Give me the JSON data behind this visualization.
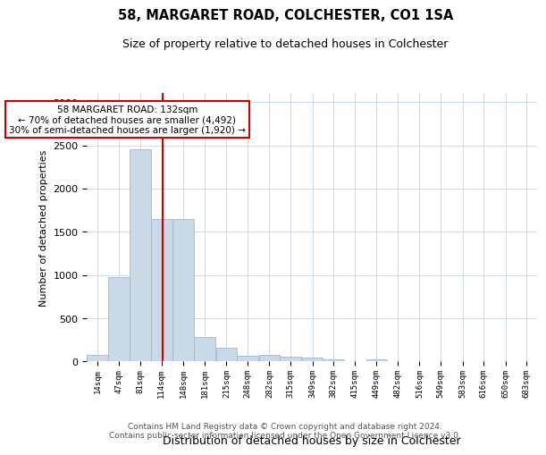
{
  "title1": "58, MARGARET ROAD, COLCHESTER, CO1 1SA",
  "title2": "Size of property relative to detached houses in Colchester",
  "xlabel": "Distribution of detached houses by size in Colchester",
  "ylabel": "Number of detached properties",
  "footer1": "Contains HM Land Registry data © Crown copyright and database right 2024.",
  "footer2": "Contains public sector information licensed under the Open Government Licence v3.0.",
  "annotation_line1": "58 MARGARET ROAD: 132sqm",
  "annotation_line2": "← 70% of detached houses are smaller (4,492)",
  "annotation_line3": "30% of semi-detached houses are larger (1,920) →",
  "red_line_x": 132,
  "categories": [
    "14sqm",
    "47sqm",
    "81sqm",
    "114sqm",
    "148sqm",
    "181sqm",
    "215sqm",
    "248sqm",
    "282sqm",
    "315sqm",
    "349sqm",
    "382sqm",
    "415sqm",
    "449sqm",
    "482sqm",
    "516sqm",
    "549sqm",
    "583sqm",
    "616sqm",
    "650sqm",
    "683sqm"
  ],
  "bin_starts": [
    14,
    47,
    81,
    114,
    148,
    181,
    215,
    248,
    282,
    315,
    349,
    382,
    415,
    449,
    482,
    516,
    549,
    583,
    616,
    650,
    683
  ],
  "bin_width": 33,
  "values": [
    80,
    980,
    2450,
    1650,
    1650,
    280,
    155,
    70,
    75,
    60,
    45,
    30,
    0,
    30,
    5,
    0,
    0,
    0,
    0,
    0,
    0
  ],
  "bar_color": "#c9d9e8",
  "bar_edgecolor": "#a0b8cc",
  "red_line_color": "#cc0000",
  "annotation_box_edgecolor": "#cc0000",
  "annotation_box_facecolor": "#ffffff",
  "background_color": "#ffffff",
  "grid_color": "#d0dde8",
  "ylim": [
    0,
    3100
  ],
  "yticks": [
    0,
    500,
    1000,
    1500,
    2000,
    2500,
    3000
  ],
  "figwidth": 6.0,
  "figheight": 5.0,
  "dpi": 100
}
